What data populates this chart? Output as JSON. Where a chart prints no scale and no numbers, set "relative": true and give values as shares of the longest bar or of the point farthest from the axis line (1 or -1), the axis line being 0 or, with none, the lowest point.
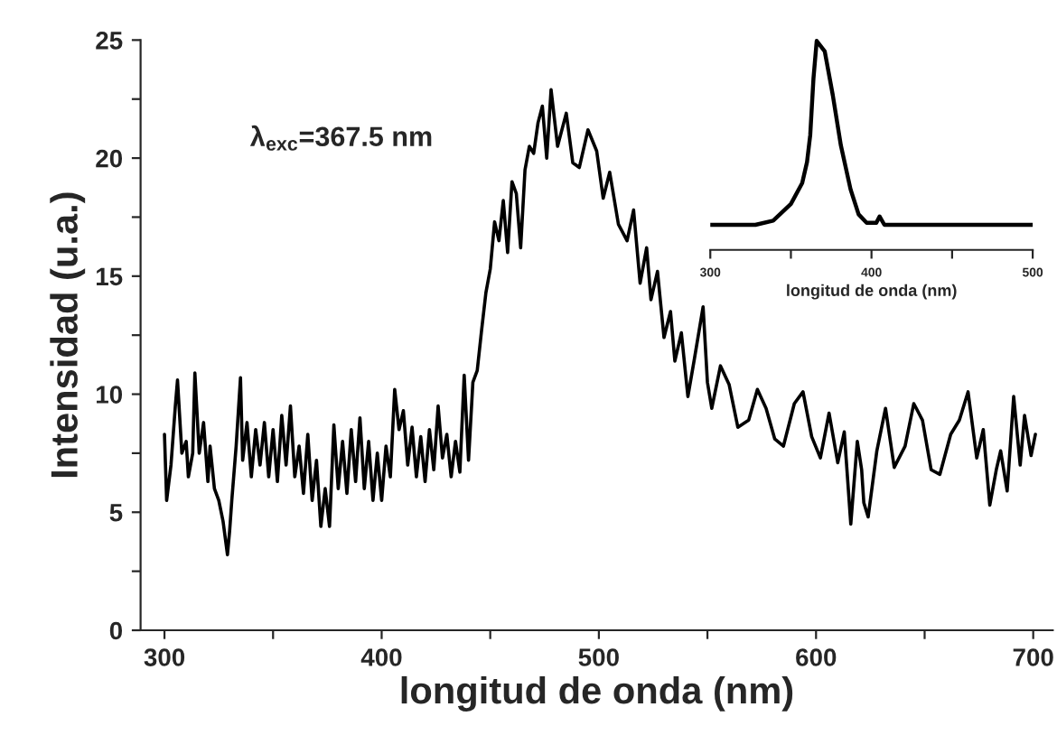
{
  "chart_data": [
    {
      "type": "line",
      "xlabel": "longitud de onda (nm)",
      "ylabel": "Intensidad (u.a.)",
      "annotations": [
        "λ$_{exc}$=367.5 nm"
      ],
      "xlim": [
        289,
        709
      ],
      "xticks": [
        300,
        {
          "value": 350,
          "label": null
        },
        400,
        {
          "value": 450,
          "label": null
        },
        500,
        {
          "value": 550,
          "label": null
        },
        600,
        {
          "value": 650,
          "label": null
        },
        700
      ],
      "ylim": [
        0,
        25
      ],
      "yticks": [
        0,
        {
          "value": 2.5,
          "label": null
        },
        5,
        {
          "value": 7.5,
          "label": null
        },
        10,
        {
          "value": 12.5,
          "label": null
        },
        15,
        {
          "value": 17.5,
          "label": null
        },
        20,
        {
          "value": 22.5,
          "label": null
        },
        25
      ],
      "grid": false,
      "legend": false,
      "marker": "none",
      "line_style": "solid",
      "series": [
        {
          "color": "#000000",
          "x": [
            300,
            301,
            303,
            305,
            306,
            308,
            310,
            311,
            313,
            314,
            316,
            318,
            320,
            321,
            323,
            325,
            327,
            329,
            330,
            331,
            333,
            335,
            336,
            338,
            340,
            342,
            344,
            346,
            348,
            350,
            352,
            354,
            356,
            358,
            360,
            362,
            364,
            366,
            368,
            370,
            372,
            374,
            376,
            378,
            380,
            382,
            384,
            386,
            388,
            390,
            392,
            394,
            396,
            398,
            400,
            402,
            404,
            406,
            408,
            410,
            412,
            414,
            416,
            418,
            420,
            422,
            424,
            426,
            428,
            430,
            432,
            434,
            436,
            438,
            440,
            442,
            444,
            446,
            448,
            450,
            452,
            454,
            456,
            458,
            460,
            462,
            464,
            466,
            468,
            470,
            472,
            474,
            476,
            478,
            481,
            485,
            488,
            491,
            495,
            499,
            502,
            505,
            509,
            513,
            516,
            519,
            522,
            524,
            527,
            530,
            533,
            535,
            538,
            541,
            544,
            548,
            550,
            552,
            556,
            560,
            564,
            569,
            573,
            577,
            581,
            585,
            590,
            594,
            598,
            602,
            606,
            610,
            613,
            616,
            619,
            621,
            622,
            624,
            628,
            632,
            636,
            641,
            645,
            649,
            653,
            657,
            662,
            666,
            670,
            674,
            677,
            680,
            683,
            685,
            688,
            691,
            694,
            696,
            699,
            701
          ],
          "values": [
            8.3,
            5.5,
            7,
            9.5,
            10.6,
            7.5,
            8,
            6.5,
            7.5,
            10.9,
            7.5,
            8.8,
            6.3,
            7.8,
            6.0,
            5.5,
            4.6,
            3.2,
            4.2,
            5.5,
            7.8,
            10.7,
            7.2,
            8.8,
            6.5,
            8.5,
            7,
            8.8,
            6.5,
            8.5,
            6.3,
            9.1,
            7,
            9.5,
            6.5,
            7.8,
            5.8,
            8.3,
            5.5,
            7.2,
            4.4,
            6,
            4.4,
            8.7,
            6,
            8,
            5.8,
            8.5,
            6.3,
            9,
            6,
            8,
            5.5,
            7.5,
            5.5,
            7.8,
            6.5,
            10.2,
            8.5,
            9.3,
            7,
            8.6,
            6.5,
            8.2,
            6.3,
            8.5,
            6.8,
            9.5,
            7.3,
            8.3,
            6.5,
            8,
            6.7,
            10.8,
            7.2,
            10.5,
            11,
            12.7,
            14.3,
            15.3,
            17.3,
            16.5,
            18.2,
            16,
            19,
            18.5,
            16.2,
            19.5,
            20.5,
            20.2,
            21.5,
            22.2,
            20,
            22.9,
            20.5,
            21.9,
            19.8,
            19.6,
            21.2,
            20.3,
            18.3,
            19.4,
            17.2,
            16.5,
            17.8,
            14.7,
            16.2,
            14,
            15.2,
            12.4,
            13.5,
            11.4,
            12.6,
            9.9,
            11.5,
            13.7,
            10.5,
            9.4,
            11.2,
            10.4,
            8.6,
            8.9,
            10.2,
            9.4,
            8.1,
            7.8,
            9.6,
            10.1,
            8.2,
            7.3,
            9.2,
            7.1,
            8.4,
            4.5,
            8.0,
            6.8,
            5.4,
            4.8,
            7.6,
            9.4,
            6.9,
            7.8,
            9.6,
            8.9,
            6.8,
            6.6,
            8.3,
            8.9,
            10.1,
            7.3,
            8.5,
            5.3,
            6.8,
            7.6,
            5.9,
            9.9,
            7.0,
            9.1,
            7.4,
            8.3
          ]
        }
      ]
    },
    {
      "type": "line",
      "xlabel": "longitud de onda (nm)",
      "relative": true,
      "tick_labels": "x",
      "xlim": [
        300,
        500
      ],
      "xticks": [
        300,
        {
          "value": 350,
          "label": null
        },
        400,
        {
          "value": 450,
          "label": null
        },
        500
      ],
      "grid": false,
      "legend": false,
      "marker": "none",
      "line_style": "solid",
      "series": [
        {
          "color": "#000000",
          "x": [
            300,
            328,
            339,
            350,
            357,
            360,
            362,
            364,
            366,
            371,
            376,
            381,
            387,
            392,
            397,
            403,
            405,
            408,
            500
          ],
          "values": [
            0.12,
            0.12,
            0.14,
            0.22,
            0.32,
            0.42,
            0.55,
            0.82,
            1.0,
            0.95,
            0.74,
            0.5,
            0.29,
            0.17,
            0.13,
            0.13,
            0.16,
            0.12,
            0.12
          ]
        }
      ]
    }
  ]
}
